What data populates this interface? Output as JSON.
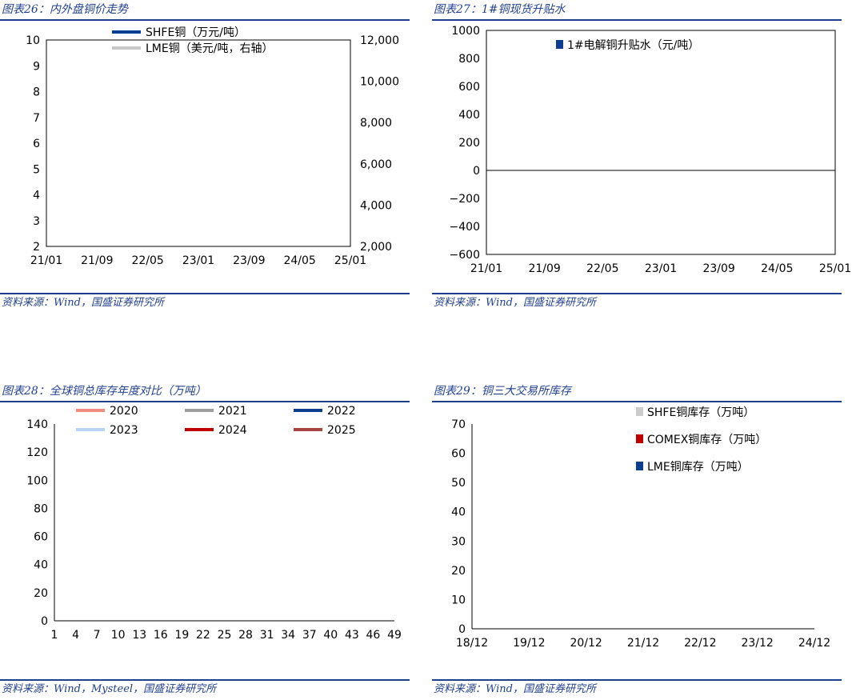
{
  "panels": [
    {
      "title": "图表26：内外盘铜价走势",
      "source": "资料来源：Wind，国盛证券研究所",
      "chart_data": {
        "type": "line",
        "x_ticks": [
          "21/01",
          "21/09",
          "22/05",
          "23/01",
          "23/09",
          "24/05",
          "25/01"
        ],
        "y_left_ticks": [
          "10",
          "9",
          "8",
          "7",
          "6",
          "5",
          "4",
          "3",
          "2"
        ],
        "y_right_ticks": [
          "12,000",
          "10,000",
          "8,000",
          "6,000",
          "4,000",
          "2,000"
        ],
        "ylim_left": [
          2,
          10
        ],
        "ylim_right": [
          2000,
          12000
        ],
        "legend_position": "top",
        "series": [
          {
            "name": "SHFE铜（万元/吨）",
            "color": "#0b3d91",
            "axis": "left",
            "values": []
          },
          {
            "name": "LME铜（美元/吨，右轴）",
            "color": "#c8c8c8",
            "axis": "right",
            "values": []
          }
        ]
      }
    },
    {
      "title": "图表27：1#铜现货升贴水",
      "source": "资料来源：Wind，国盛证券研究所",
      "chart_data": {
        "type": "bar",
        "x_ticks": [
          "21/01",
          "21/09",
          "22/05",
          "23/01",
          "23/09",
          "24/05",
          "25/01"
        ],
        "y_ticks": [
          "1000",
          "800",
          "600",
          "400",
          "200",
          "0",
          "−200",
          "−400",
          "−600"
        ],
        "ylim": [
          -600,
          1000
        ],
        "legend_position": "top",
        "series": [
          {
            "name": "1#电解铜升贴水（元/吨）",
            "color": "#0b3d91",
            "values": []
          }
        ]
      }
    },
    {
      "title": "图表28：全球铜总库存年度对比（万吨）",
      "source": "资料来源：Wind，Mysteel，国盛证券研究所",
      "chart_data": {
        "type": "line",
        "x_ticks": [
          "1",
          "4",
          "7",
          "10",
          "13",
          "16",
          "19",
          "22",
          "25",
          "28",
          "31",
          "34",
          "37",
          "40",
          "43",
          "46",
          "49"
        ],
        "y_ticks": [
          "140",
          "120",
          "100",
          "80",
          "60",
          "40",
          "20",
          "0"
        ],
        "ylim": [
          0,
          140
        ],
        "legend_position": "top",
        "series": [
          {
            "name": "2020",
            "color": "#f28b82",
            "values": []
          },
          {
            "name": "2021",
            "color": "#9e9e9e",
            "values": []
          },
          {
            "name": "2022",
            "color": "#0b3d91",
            "values": []
          },
          {
            "name": "2023",
            "color": "#b7d4f5",
            "values": []
          },
          {
            "name": "2024",
            "color": "#c00000",
            "values": []
          },
          {
            "name": "2025",
            "color": "#a94442",
            "values": []
          }
        ]
      }
    },
    {
      "title": "图表29：铜三大交易所库存",
      "source": "资料来源：Wind，国盛证券研究所",
      "chart_data": {
        "type": "area",
        "x_ticks": [
          "18/12",
          "19/12",
          "20/12",
          "21/12",
          "22/12",
          "23/12",
          "24/12"
        ],
        "y_ticks": [
          "70",
          "60",
          "50",
          "40",
          "30",
          "20",
          "10",
          "0"
        ],
        "ylim": [
          0,
          70
        ],
        "stacked": true,
        "legend_position": "top-right",
        "series": [
          {
            "name": "SHFE铜库存（万吨）",
            "color": "#cccccc",
            "values": []
          },
          {
            "name": "COMEX铜库存（万吨）",
            "color": "#c00000",
            "values": []
          },
          {
            "name": "LME铜库存（万吨）",
            "color": "#0b3d91",
            "values": []
          }
        ]
      }
    }
  ]
}
